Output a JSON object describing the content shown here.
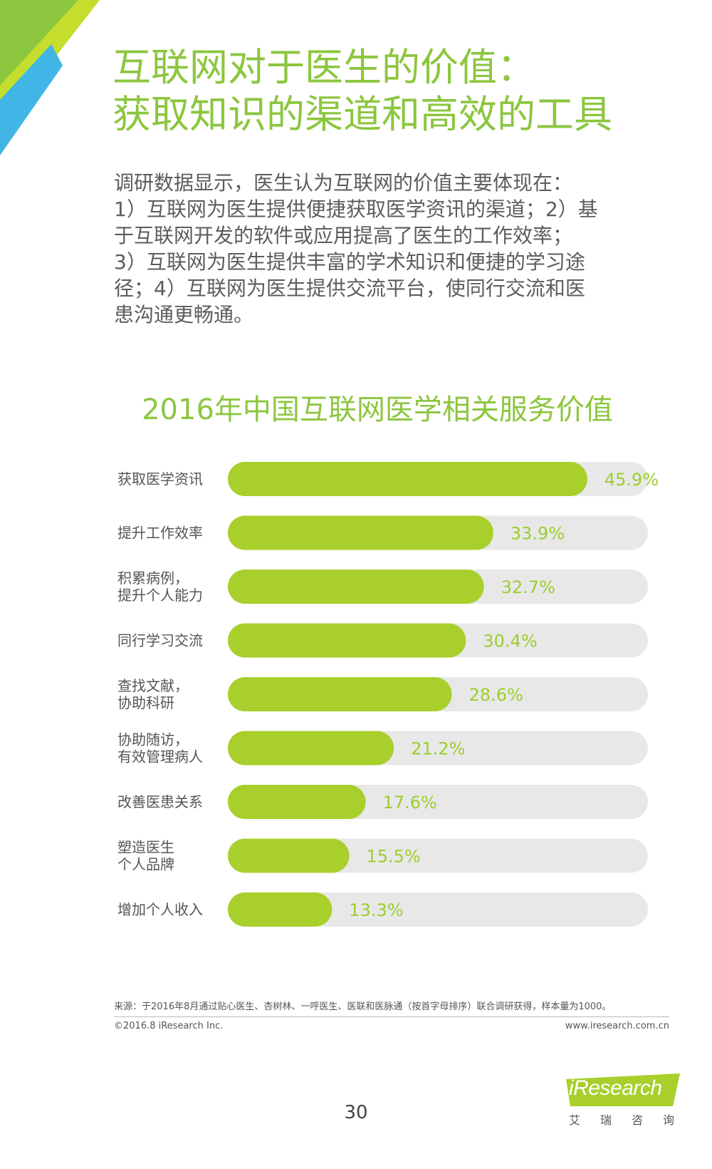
{
  "page": {
    "title_line1": "互联网对于医生的价值：",
    "title_line2": "获取知识的渠道和高效的工具",
    "description": "调研数据显示，医生认为互联网的价值主要体现在：\n1）互联网为医生提供便捷获取医学资讯的渠道；2）基\n于互联网开发的软件或应用提高了医生的工作效率；\n3）互联网为医生提供丰富的学术知识和便捷的学习途\n径；4）互联网为医生提供交流平台，使同行交流和医\n患沟通更畅通。",
    "source": "来源：于2016年8月通过贴心医生、杏树林、一呼医生、医联和医脉通（按首字母排序）联合调研获得，样本量为1000。",
    "copyright": "©2016.8 iResearch Inc.",
    "website": "www.iresearch.com.cn",
    "page_number": "30",
    "logo_text": "iResearch",
    "logo_sub": "艾瑞咨询"
  },
  "colors": {
    "accent": "#8cc63f",
    "bar_fill": "#a8cf2b",
    "track": "#e8e8e8",
    "label": "#555555",
    "value": "#9ccd2e",
    "corner_green": "#8cc63f",
    "corner_lime": "#c5de2d",
    "corner_blue": "#41b6e6"
  },
  "chart_data": {
    "type": "bar",
    "orientation": "horizontal",
    "title": "2016年中国互联网医学相关服务价值",
    "categories": [
      [
        "获取医学资讯"
      ],
      [
        "提升工作效率"
      ],
      [
        "积累病例，",
        "提升个人能力"
      ],
      [
        "同行学习交流"
      ],
      [
        "查找文献，",
        "协助科研"
      ],
      [
        "协助随访，",
        "有效管理病人"
      ],
      [
        "改善医患关系"
      ],
      [
        "塑造医生",
        "个人品牌"
      ],
      [
        "增加个人收入"
      ]
    ],
    "values": [
      45.9,
      33.9,
      32.7,
      30.4,
      28.6,
      21.2,
      17.6,
      15.5,
      13.3
    ],
    "value_labels": [
      "45.9%",
      "33.9%",
      "32.7%",
      "30.4%",
      "28.6%",
      "21.2%",
      "17.6%",
      "15.5%",
      "13.3%"
    ],
    "xlim": [
      0,
      60
    ],
    "unit": "%",
    "grid": false,
    "legend": "none"
  }
}
